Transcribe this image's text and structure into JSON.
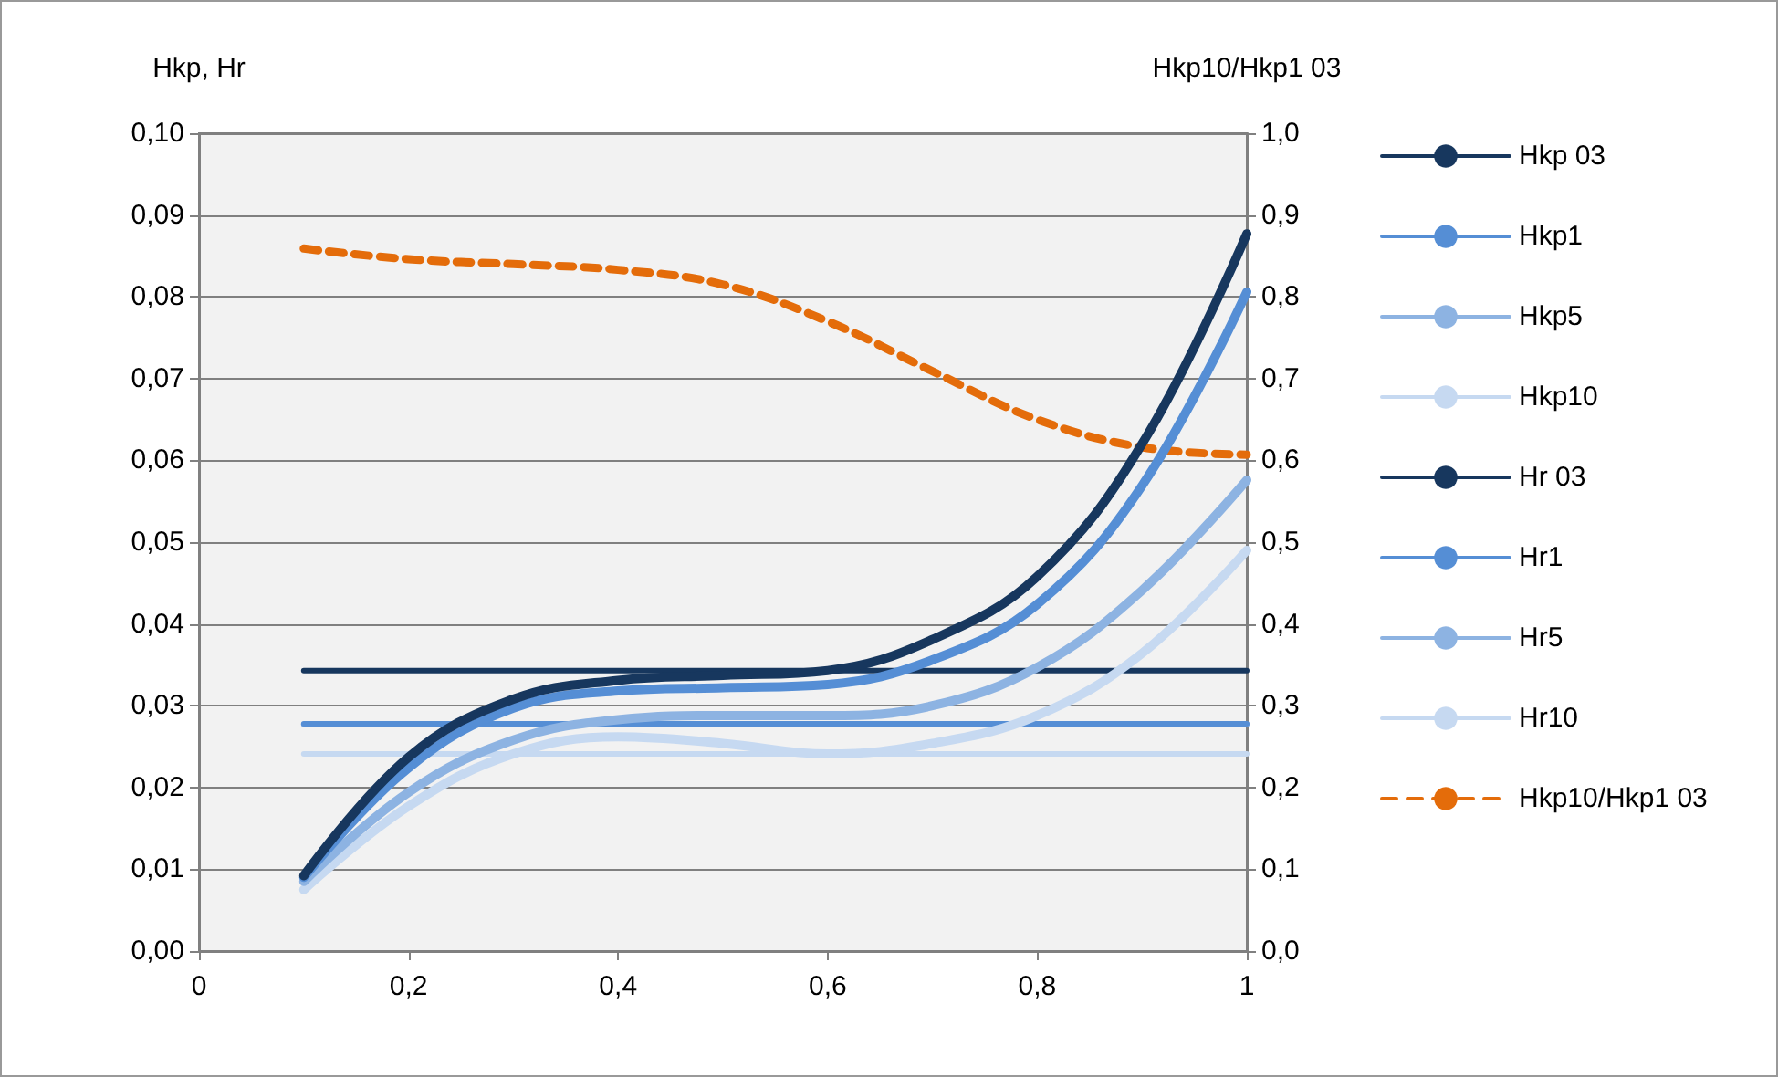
{
  "chart_data": {
    "type": "line",
    "ylabel": "Hkp, Hr",
    "y2label": "Hkp10/Hkp1 03",
    "xlim": [
      0,
      1
    ],
    "xticks": [
      0,
      {
        "value": 0.2,
        "label": "0,2"
      },
      {
        "value": 0.4,
        "label": "0,4"
      },
      {
        "value": 0.6,
        "label": "0,6"
      },
      {
        "value": 0.8,
        "label": "0,8"
      },
      1
    ],
    "ylim": [
      0,
      0.1
    ],
    "yticks": [
      {
        "value": 0,
        "label": "0,00"
      },
      {
        "value": 0.01,
        "label": "0,01"
      },
      {
        "value": 0.02,
        "label": "0,02"
      },
      {
        "value": 0.03,
        "label": "0,03"
      },
      {
        "value": 0.04,
        "label": "0,04"
      },
      {
        "value": 0.05,
        "label": "0,05"
      },
      {
        "value": 0.06,
        "label": "0,06"
      },
      {
        "value": 0.07,
        "label": "0,07"
      },
      {
        "value": 0.08,
        "label": "0,08"
      },
      {
        "value": 0.09,
        "label": "0,09"
      },
      {
        "value": 0.1,
        "label": "0,10"
      }
    ],
    "y2lim": [
      0,
      1
    ],
    "y2ticks": [
      {
        "value": 0,
        "label": "0,0"
      },
      {
        "value": 0.1,
        "label": "0,1"
      },
      {
        "value": 0.2,
        "label": "0,2"
      },
      {
        "value": 0.3,
        "label": "0,3"
      },
      {
        "value": 0.4,
        "label": "0,4"
      },
      {
        "value": 0.5,
        "label": "0,5"
      },
      {
        "value": 0.6,
        "label": "0,6"
      },
      {
        "value": 0.7,
        "label": "0,7"
      },
      {
        "value": 0.8,
        "label": "0,8"
      },
      {
        "value": 0.9,
        "label": "0,9"
      },
      {
        "value": 1,
        "label": "1,0"
      }
    ],
    "grid": "y",
    "legend": "right",
    "marker": "none",
    "series": [
      {
        "name": "Hkp 03",
        "color": "#17375e",
        "x": [
          0.1,
          0.2,
          0.3,
          0.4,
          0.5,
          0.6,
          0.7,
          0.8,
          0.9,
          1
        ],
        "values": [
          0.0092,
          0.0237,
          0.0308,
          0.0331,
          0.0337,
          0.0343,
          0.0381,
          0.0458,
          0.062,
          0.0877
        ]
      },
      {
        "name": "Hkp1",
        "color": "#558ed5",
        "x": [
          0.1,
          0.2,
          0.3,
          0.4,
          0.5,
          0.6,
          0.7,
          0.8,
          0.9,
          1
        ],
        "values": [
          0.009,
          0.0224,
          0.0297,
          0.0318,
          0.0322,
          0.0326,
          0.0356,
          0.0424,
          0.0569,
          0.0806
        ]
      },
      {
        "name": "Hkp5",
        "color": "#8db3e2",
        "x": [
          0.1,
          0.2,
          0.3,
          0.4,
          0.5,
          0.6,
          0.7,
          0.8,
          0.9,
          1
        ],
        "values": [
          0.0085,
          0.0194,
          0.0258,
          0.0283,
          0.0288,
          0.0288,
          0.03,
          0.0347,
          0.0441,
          0.0576
        ]
      },
      {
        "name": "Hkp10",
        "color": "#c6d9f1",
        "x": [
          0.1,
          0.2,
          0.3,
          0.4,
          0.5,
          0.6,
          0.7,
          0.8,
          0.9,
          1
        ],
        "values": [
          0.0075,
          0.0177,
          0.0241,
          0.0262,
          0.0254,
          0.0241,
          0.0254,
          0.0288,
          0.0364,
          0.049
        ]
      },
      {
        "name": "Hr 03",
        "color": "#17375e",
        "line_style": "solid",
        "x": [
          0.1,
          1
        ],
        "values": [
          0.0343,
          0.0343
        ]
      },
      {
        "name": "Hr1",
        "color": "#558ed5",
        "line_style": "solid",
        "x": [
          0.1,
          1
        ],
        "values": [
          0.0278,
          0.0278
        ]
      },
      {
        "name": "Hr5",
        "color": "#8db3e2",
        "line_style": "solid",
        "x": [
          0.1,
          1
        ],
        "values": [
          0.0277,
          0.0277
        ]
      },
      {
        "name": "Hr10",
        "color": "#c6d9f1",
        "line_style": "solid",
        "x": [
          0.1,
          1
        ],
        "values": [
          0.0241,
          0.0241
        ]
      },
      {
        "name": "Hkp10/Hkp1 03",
        "color": "#e46c0a",
        "line_style": "dashed",
        "axis": "y2",
        "x": [
          0.1,
          0.2,
          0.3,
          0.4,
          0.5,
          0.6,
          0.7,
          0.8,
          0.9,
          1
        ],
        "values": [
          0.859,
          0.846,
          0.84,
          0.833,
          0.815,
          0.77,
          0.709,
          0.65,
          0.616,
          0.607
        ]
      }
    ]
  }
}
